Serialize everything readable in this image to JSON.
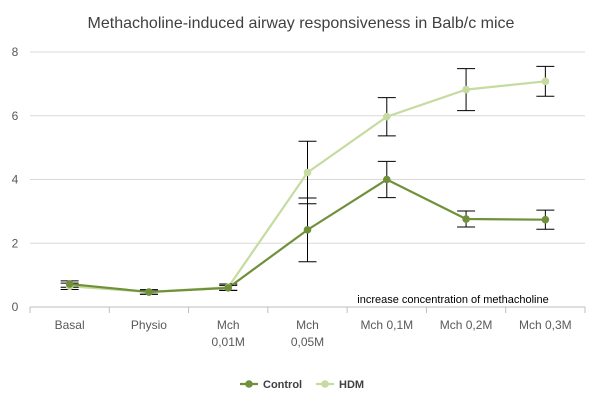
{
  "chart_data": {
    "type": "line",
    "title": "Methacholine-induced airway responsiveness in Balb/c mice",
    "annotation": "increase concentration of methacholine",
    "categories": [
      [
        "Basal"
      ],
      [
        "Physio"
      ],
      [
        "Mch",
        "0,01M"
      ],
      [
        "Mch",
        "0,05M"
      ],
      [
        "Mch 0,1M"
      ],
      [
        "Mch 0,2M"
      ],
      [
        "Mch 0,3M"
      ]
    ],
    "ylim": [
      0,
      8
    ],
    "yticks": [
      "0",
      "2",
      "4",
      "6",
      "8"
    ],
    "grid": true,
    "legend_position": "bottom",
    "series": [
      {
        "name": "Control",
        "color": "#70913a",
        "values": [
          0.72,
          0.47,
          0.6,
          2.42,
          4.0,
          2.76,
          2.74
        ],
        "error": [
          0.1,
          0.07,
          0.08,
          1.0,
          0.57,
          0.25,
          0.3
        ]
      },
      {
        "name": "HDM",
        "color": "#c5dba0",
        "values": [
          0.65,
          0.47,
          0.62,
          4.22,
          5.97,
          6.82,
          7.08
        ],
        "error": [
          0.1,
          0.07,
          0.1,
          0.98,
          0.6,
          0.66,
          0.47
        ]
      }
    ]
  }
}
